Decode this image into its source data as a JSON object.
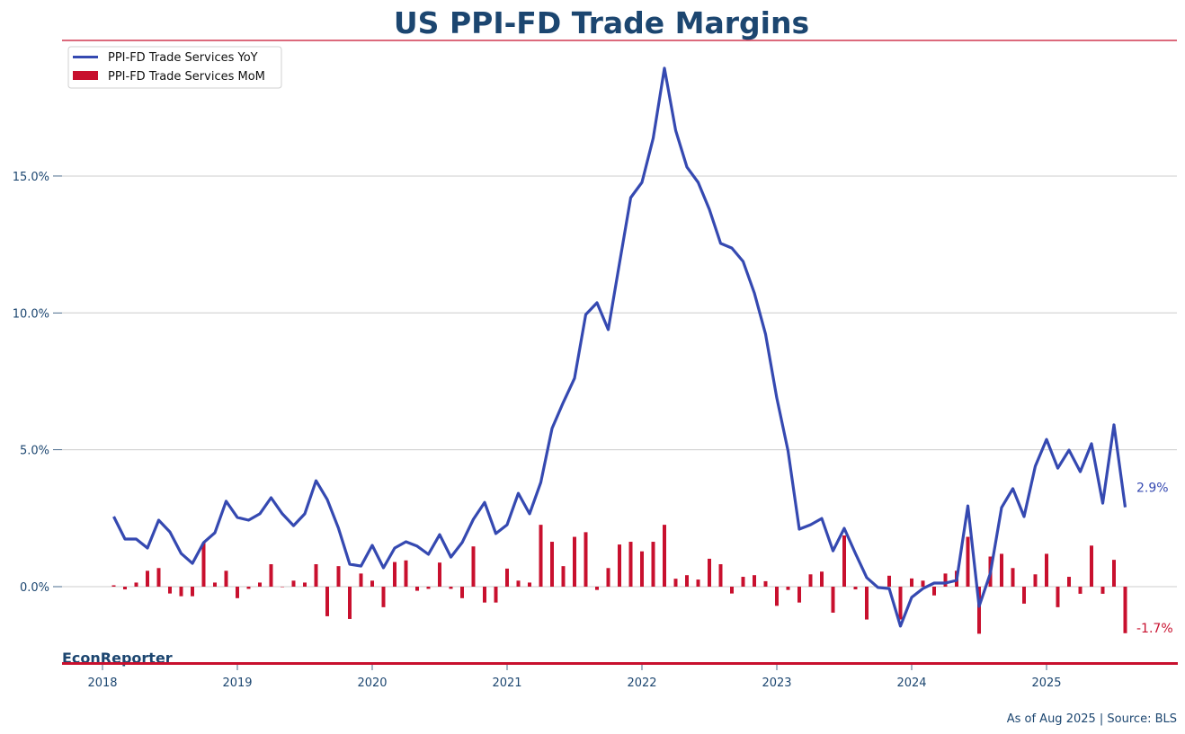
{
  "colors": {
    "yoy": "#3549b1",
    "mom": "#c8102e",
    "title": "#1c4670",
    "grid": "#cccccc",
    "accent_rule": "#c8102e"
  },
  "header": {
    "title": "US PPI-FD Trade Margins"
  },
  "footer": {
    "brand": "EconReporter",
    "source": "As of Aug 2025 | Source: BLS"
  },
  "chart_data": {
    "type": "line+bar",
    "title": "US PPI-FD Trade Margins",
    "xlabel": "",
    "ylabel": "",
    "ylim": [
      -2.8,
      19.8
    ],
    "y_ticks": [
      0,
      5,
      10,
      15
    ],
    "y_tick_labels": [
      "0.0%",
      "5.0%",
      "10.0%",
      "15.0%"
    ],
    "x_ticks": [
      "2018",
      "2019",
      "2020",
      "2021",
      "2022",
      "2023",
      "2024",
      "2025"
    ],
    "grid": "horizontal",
    "legend": {
      "placement": "top-left",
      "entries": [
        "PPI-FD Trade Services YoY",
        "PPI-FD Trade Services MoM"
      ]
    },
    "x_start": "2018-02",
    "x_end": "2025-08",
    "series": [
      {
        "name": "PPI-FD Trade Services YoY",
        "type": "line",
        "end_label": "2.9%",
        "values": [
          2.56,
          1.74,
          1.74,
          1.41,
          2.43,
          2.0,
          1.21,
          0.85,
          1.61,
          1.97,
          3.12,
          2.53,
          2.43,
          2.66,
          3.25,
          2.66,
          2.23,
          2.66,
          3.87,
          3.18,
          2.13,
          0.82,
          0.75,
          1.51,
          0.69,
          1.41,
          1.64,
          1.48,
          1.18,
          1.9,
          1.08,
          1.61,
          2.46,
          3.08,
          1.94,
          2.26,
          3.41,
          2.66,
          3.81,
          5.78,
          6.73,
          7.61,
          9.94,
          10.37,
          9.39,
          11.81,
          14.21,
          14.77,
          16.38,
          18.94,
          16.67,
          15.33,
          14.77,
          13.78,
          12.54,
          12.37,
          11.88,
          10.73,
          9.22,
          6.89,
          4.96,
          2.1,
          2.26,
          2.49,
          1.31,
          2.13,
          1.21,
          0.33,
          -0.03,
          -0.07,
          -1.44,
          -0.39,
          -0.07,
          0.13,
          0.13,
          0.23,
          2.95,
          -0.72,
          0.49,
          2.89,
          3.58,
          2.56,
          4.4,
          5.38,
          4.33,
          4.99,
          4.2,
          5.22,
          3.05,
          5.91,
          2.9
        ]
      },
      {
        "name": "PPI-FD Trade Services MoM",
        "type": "bar",
        "end_label": "-1.7%",
        "values": [
          0.05,
          -0.1,
          0.15,
          0.58,
          0.68,
          -0.25,
          -0.35,
          -0.35,
          1.6,
          0.15,
          0.58,
          -0.42,
          -0.08,
          0.15,
          0.82,
          0.0,
          0.22,
          0.15,
          0.82,
          -1.08,
          0.75,
          -1.18,
          0.48,
          0.22,
          -0.75,
          0.9,
          0.96,
          -0.15,
          -0.08,
          0.88,
          -0.08,
          -0.42,
          1.47,
          -0.58,
          -0.58,
          0.66,
          0.22,
          0.15,
          2.26,
          1.64,
          0.75,
          1.82,
          1.99,
          -0.12,
          0.68,
          1.54,
          1.64,
          1.29,
          1.64,
          2.26,
          0.29,
          0.42,
          0.26,
          1.02,
          0.82,
          -0.25,
          0.36,
          0.42,
          0.2,
          -0.7,
          -0.12,
          -0.58,
          0.45,
          0.55,
          -0.95,
          1.87,
          -0.1,
          -1.2,
          0.0,
          0.4,
          -1.2,
          0.3,
          0.22,
          -0.32,
          0.48,
          0.58,
          1.82,
          -1.72,
          1.1,
          1.2,
          0.68,
          -0.62,
          0.45,
          1.2,
          -0.75,
          0.36,
          -0.26,
          1.5,
          -0.26,
          0.98,
          -1.7
        ]
      }
    ]
  }
}
